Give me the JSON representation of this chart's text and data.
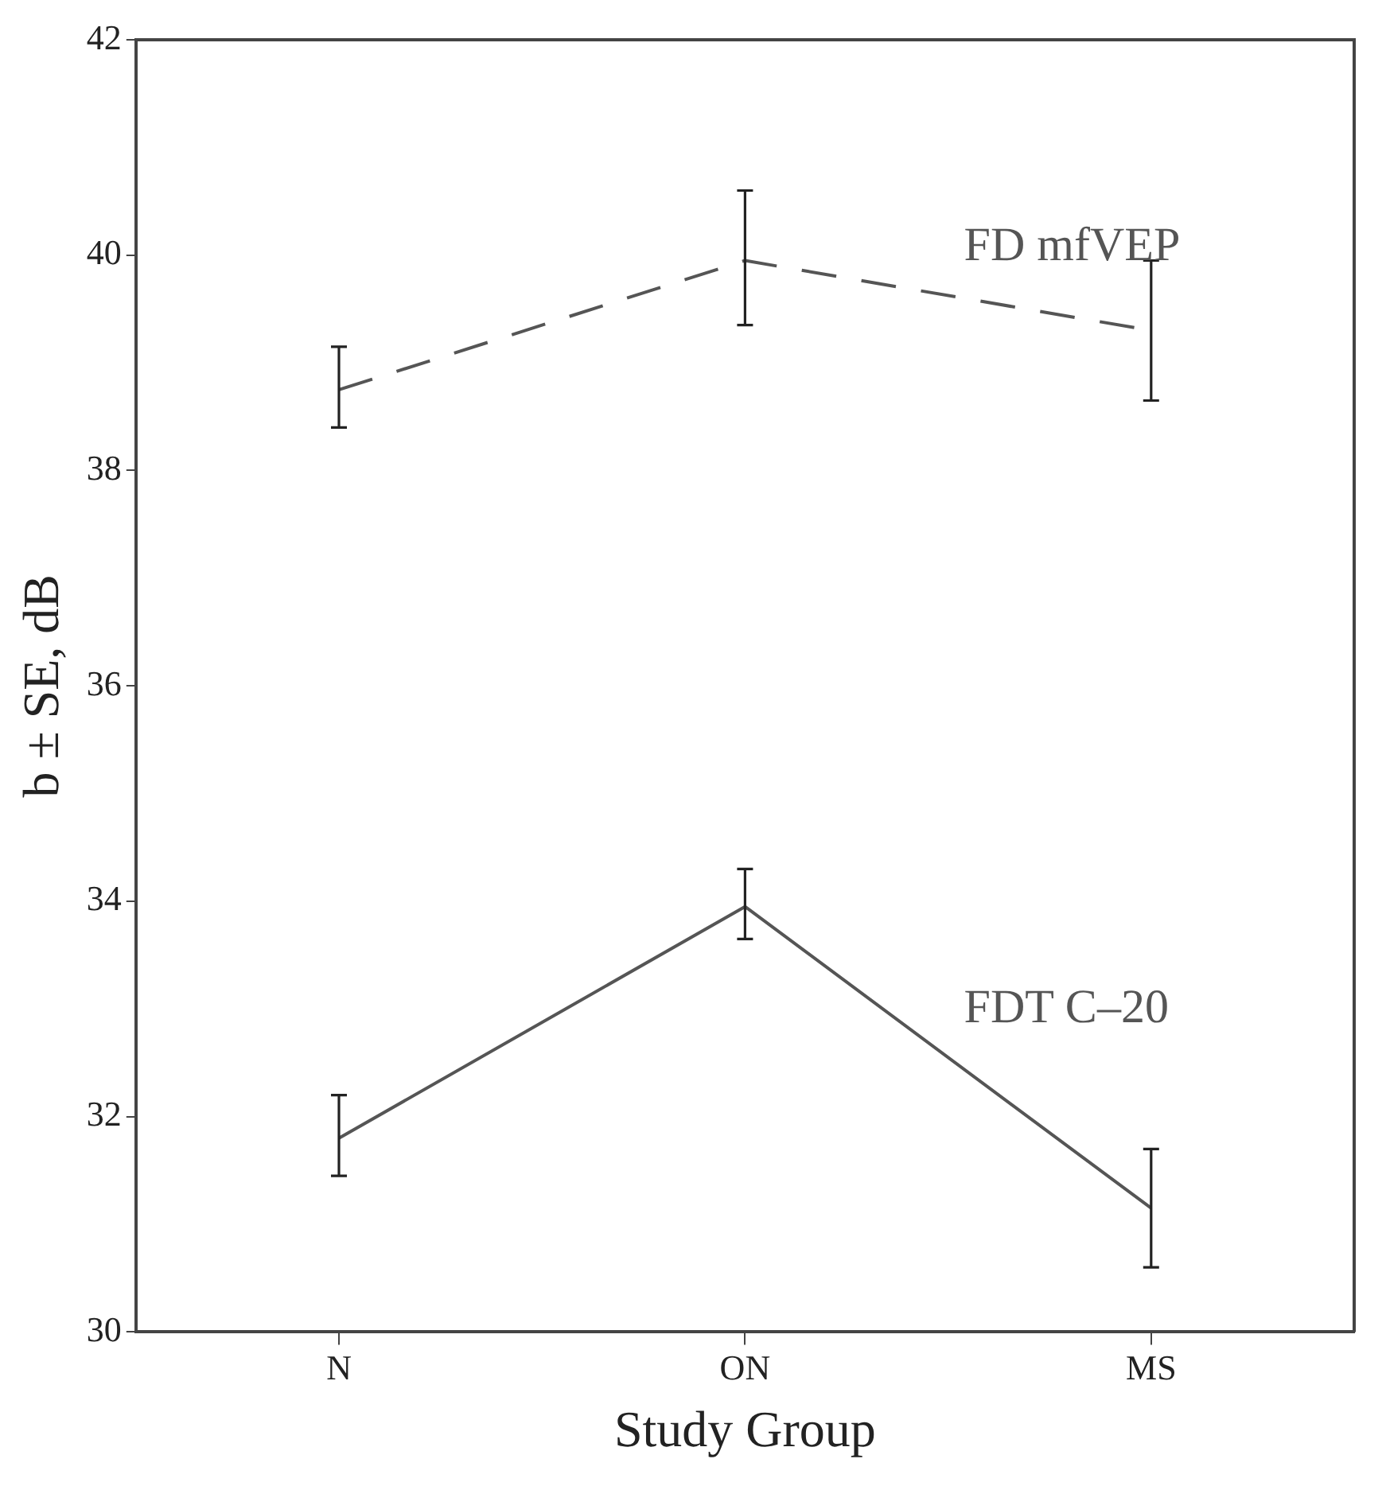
{
  "chart_data": {
    "type": "line",
    "xlabel": "Study Group",
    "ylabel": "b ± SE, dB",
    "categories": [
      "N",
      "ON",
      "MS"
    ],
    "series": [
      {
        "name": "FD mfVEP",
        "color": "#555555",
        "line_style": "dashed",
        "values": [
          38.75,
          39.95,
          39.3
        ],
        "errors": [
          [
            38.4,
            39.15
          ],
          [
            39.35,
            40.6
          ],
          [
            38.65,
            39.95
          ]
        ]
      },
      {
        "name": "FDT C–20",
        "color": "#555555",
        "line_style": "solid",
        "values": [
          31.8,
          33.95,
          31.15
        ],
        "errors": [
          [
            31.45,
            32.2
          ],
          [
            33.65,
            34.3
          ],
          [
            30.6,
            31.7
          ]
        ]
      }
    ],
    "ylim": [
      30,
      42
    ],
    "yticks": [
      30,
      32,
      34,
      36,
      38,
      40,
      42
    ],
    "grid": false,
    "legend": false,
    "marker": "none"
  }
}
